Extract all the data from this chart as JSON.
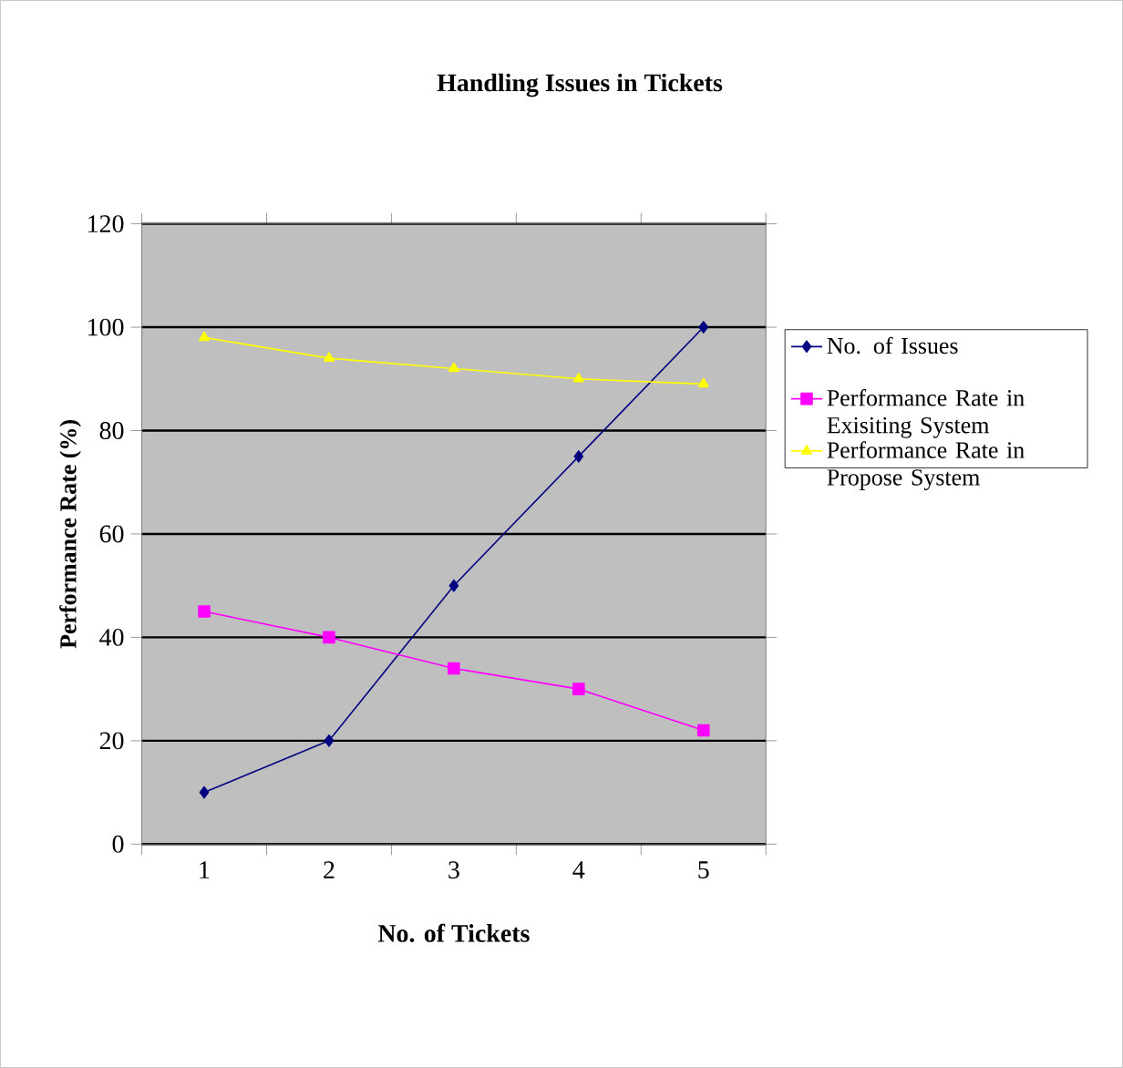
{
  "chart_data": {
    "type": "line",
    "title": "Handling Issues in Tickets",
    "xlabel": "No. of Tickets",
    "ylabel": "Performance Rate (%)",
    "categories": [
      "1",
      "2",
      "3",
      "4",
      "5"
    ],
    "series": [
      {
        "name": "No. of Issues",
        "color": "#000080",
        "marker": "diamond",
        "values": [
          10,
          20,
          50,
          75,
          100
        ]
      },
      {
        "name": "Performance Rate in Exisiting System",
        "color": "#ff00ff",
        "marker": "square",
        "values": [
          45,
          40,
          34,
          30,
          22
        ]
      },
      {
        "name": "Performance Rate in Propose System",
        "color": "#ffff00",
        "marker": "triangle",
        "values": [
          98,
          94,
          92,
          90,
          89
        ]
      }
    ],
    "ylim": [
      0,
      120
    ],
    "yticks": [
      0,
      20,
      40,
      60,
      80,
      100,
      120
    ],
    "grid": "y",
    "legend": "right"
  }
}
